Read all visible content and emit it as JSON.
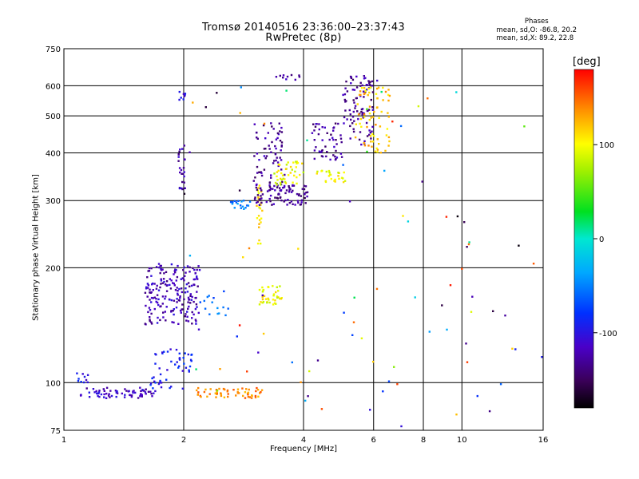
{
  "header": {
    "title": "Tromsø 20140516 23:36:00–23:37:43",
    "subtitle": "RwPretec (8p)"
  },
  "phase_stats": {
    "title": "Phases",
    "line_o": "mean, sd,O: -86.8, 20.2",
    "line_x": "mean, sd,X:  89.2, 22.8"
  },
  "colorbar": {
    "label": "[deg]",
    "ticks": [
      "100",
      "0",
      "-100"
    ],
    "tick_values": [
      100,
      0,
      -100
    ],
    "range": [
      -180,
      180
    ]
  },
  "chart_data": {
    "type": "scatter",
    "title": "Tromsø 20140516 23:36:00–23:37:43",
    "subtitle": "RwPretec (8p)",
    "xlabel": "Frequency [MHz]",
    "ylabel": "Stationary phase Virtual Height [km]",
    "x_scale": "log",
    "y_scale": "log",
    "xlim": [
      1,
      16
    ],
    "ylim": [
      75,
      750
    ],
    "x_ticks": [
      "1",
      "2",
      "4",
      "6",
      "8",
      "10",
      "16"
    ],
    "x_tick_values": [
      1,
      2,
      4,
      6,
      8,
      10,
      16
    ],
    "y_ticks": [
      "75",
      "100",
      "200",
      "300",
      "400",
      "500",
      "600",
      "750"
    ],
    "y_tick_values": [
      75,
      100,
      200,
      300,
      400,
      500,
      600,
      750
    ],
    "x_gridlines": [
      2,
      4,
      6,
      8,
      10
    ],
    "y_gridlines": [
      100,
      200,
      300,
      400,
      500,
      600
    ],
    "color_scale": "phase [deg], -180 to 180, rainbow",
    "clusters": [
      {
        "x_range": [
          1.1,
          1.7
        ],
        "y_range": [
          91,
          97
        ],
        "phase": -115,
        "count": 70
      },
      {
        "x_range": [
          1.05,
          1.15
        ],
        "y_range": [
          100,
          106
        ],
        "phase": -100,
        "count": 10
      },
      {
        "x_range": [
          1.65,
          2.1
        ],
        "y_range": [
          96,
          125
        ],
        "phase": -90,
        "count": 50
      },
      {
        "x_range": [
          2.15,
          3.15
        ],
        "y_range": [
          91,
          97
        ],
        "phase": 140,
        "count": 60
      },
      {
        "x_range": [
          1.6,
          2.2
        ],
        "y_range": [
          142,
          205
        ],
        "phase": -120,
        "count": 200
      },
      {
        "x_range": [
          2.2,
          2.6
        ],
        "y_range": [
          150,
          175
        ],
        "phase": -60,
        "count": 15
      },
      {
        "x_range": [
          1.94,
          2.02
        ],
        "y_range": [
          320,
          420
        ],
        "phase": -120,
        "count": 25
      },
      {
        "x_range": [
          1.94,
          2.02
        ],
        "y_range": [
          550,
          580
        ],
        "phase": -110,
        "count": 8
      },
      {
        "x_range": [
          2.6,
          3.1
        ],
        "y_range": [
          285,
          300
        ],
        "phase": -50,
        "count": 20
      },
      {
        "x_range": [
          3.05,
          3.15
        ],
        "y_range": [
          230,
          330
        ],
        "phase": 110,
        "count": 30
      },
      {
        "x_range": [
          3.1,
          3.55
        ],
        "y_range": [
          160,
          180
        ],
        "phase": 100,
        "count": 40
      },
      {
        "x_range": [
          3.0,
          4.1
        ],
        "y_range": [
          292,
          330
        ],
        "phase": -130,
        "count": 90
      },
      {
        "x_range": [
          3.0,
          3.6
        ],
        "y_range": [
          320,
          480
        ],
        "phase": -130,
        "count": 70
      },
      {
        "x_range": [
          3.4,
          4.0
        ],
        "y_range": [
          330,
          380
        ],
        "phase": 95,
        "count": 40
      },
      {
        "x_range": [
          4.3,
          5.1
        ],
        "y_range": [
          335,
          360
        ],
        "phase": 100,
        "count": 25
      },
      {
        "x_range": [
          4.2,
          5.0
        ],
        "y_range": [
          380,
          480
        ],
        "phase": -130,
        "count": 50
      },
      {
        "x_range": [
          5.0,
          6.0
        ],
        "y_range": [
          420,
          640
        ],
        "phase": -130,
        "count": 90
      },
      {
        "x_range": [
          5.4,
          6.6
        ],
        "y_range": [
          400,
          600
        ],
        "phase": 120,
        "count": 70
      },
      {
        "x_range": [
          3.3,
          4.0
        ],
        "y_range": [
          620,
          640
        ],
        "phase": -130,
        "count": 10
      },
      {
        "x_range": [
          2.0,
          16.0
        ],
        "y_range": [
          76,
          650
        ],
        "phase": 0,
        "count": 90
      }
    ]
  }
}
